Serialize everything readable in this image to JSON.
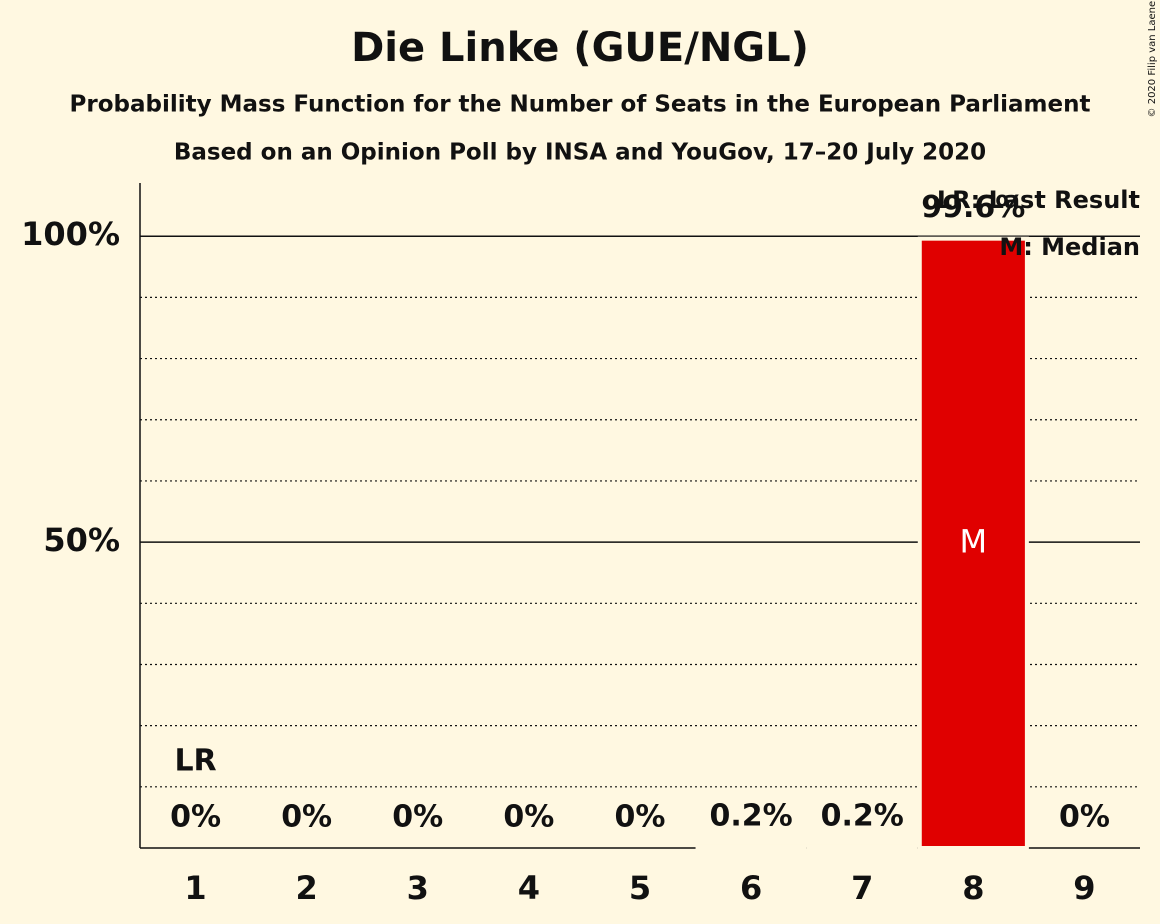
{
  "chart_data": {
    "type": "bar",
    "title": "Die Linke (GUE/NGL)",
    "subtitle": "Probability Mass Function for the Number of Seats in the European Parliament",
    "subtitle2": "Based on an Opinion Poll by INSA and YouGov, 17–20 July 2020",
    "copyright": "© 2020 Filip van Laenen",
    "categories": [
      "1",
      "2",
      "3",
      "4",
      "5",
      "6",
      "7",
      "8",
      "9"
    ],
    "values": [
      0,
      0,
      0,
      0,
      0,
      0.2,
      0.2,
      99.6,
      0
    ],
    "value_labels": [
      "0%",
      "0%",
      "0%",
      "0%",
      "0%",
      "0.2%",
      "0.2%",
      "99.6%",
      "0%"
    ],
    "color": "#e00000",
    "ylim": [
      0,
      108.7
    ],
    "yticks": [
      {
        "value": 50,
        "label": "50%"
      },
      {
        "value": 100,
        "label": "100%"
      }
    ],
    "minor_yticks": [
      10,
      20,
      30,
      40,
      60,
      70,
      80,
      90
    ],
    "grid": true,
    "last_result": "1",
    "last_result_label": "LR",
    "median": "8",
    "median_label": "M",
    "legend": [
      "LR: Last Result",
      "M: Median"
    ],
    "legend_position": "upper right"
  }
}
